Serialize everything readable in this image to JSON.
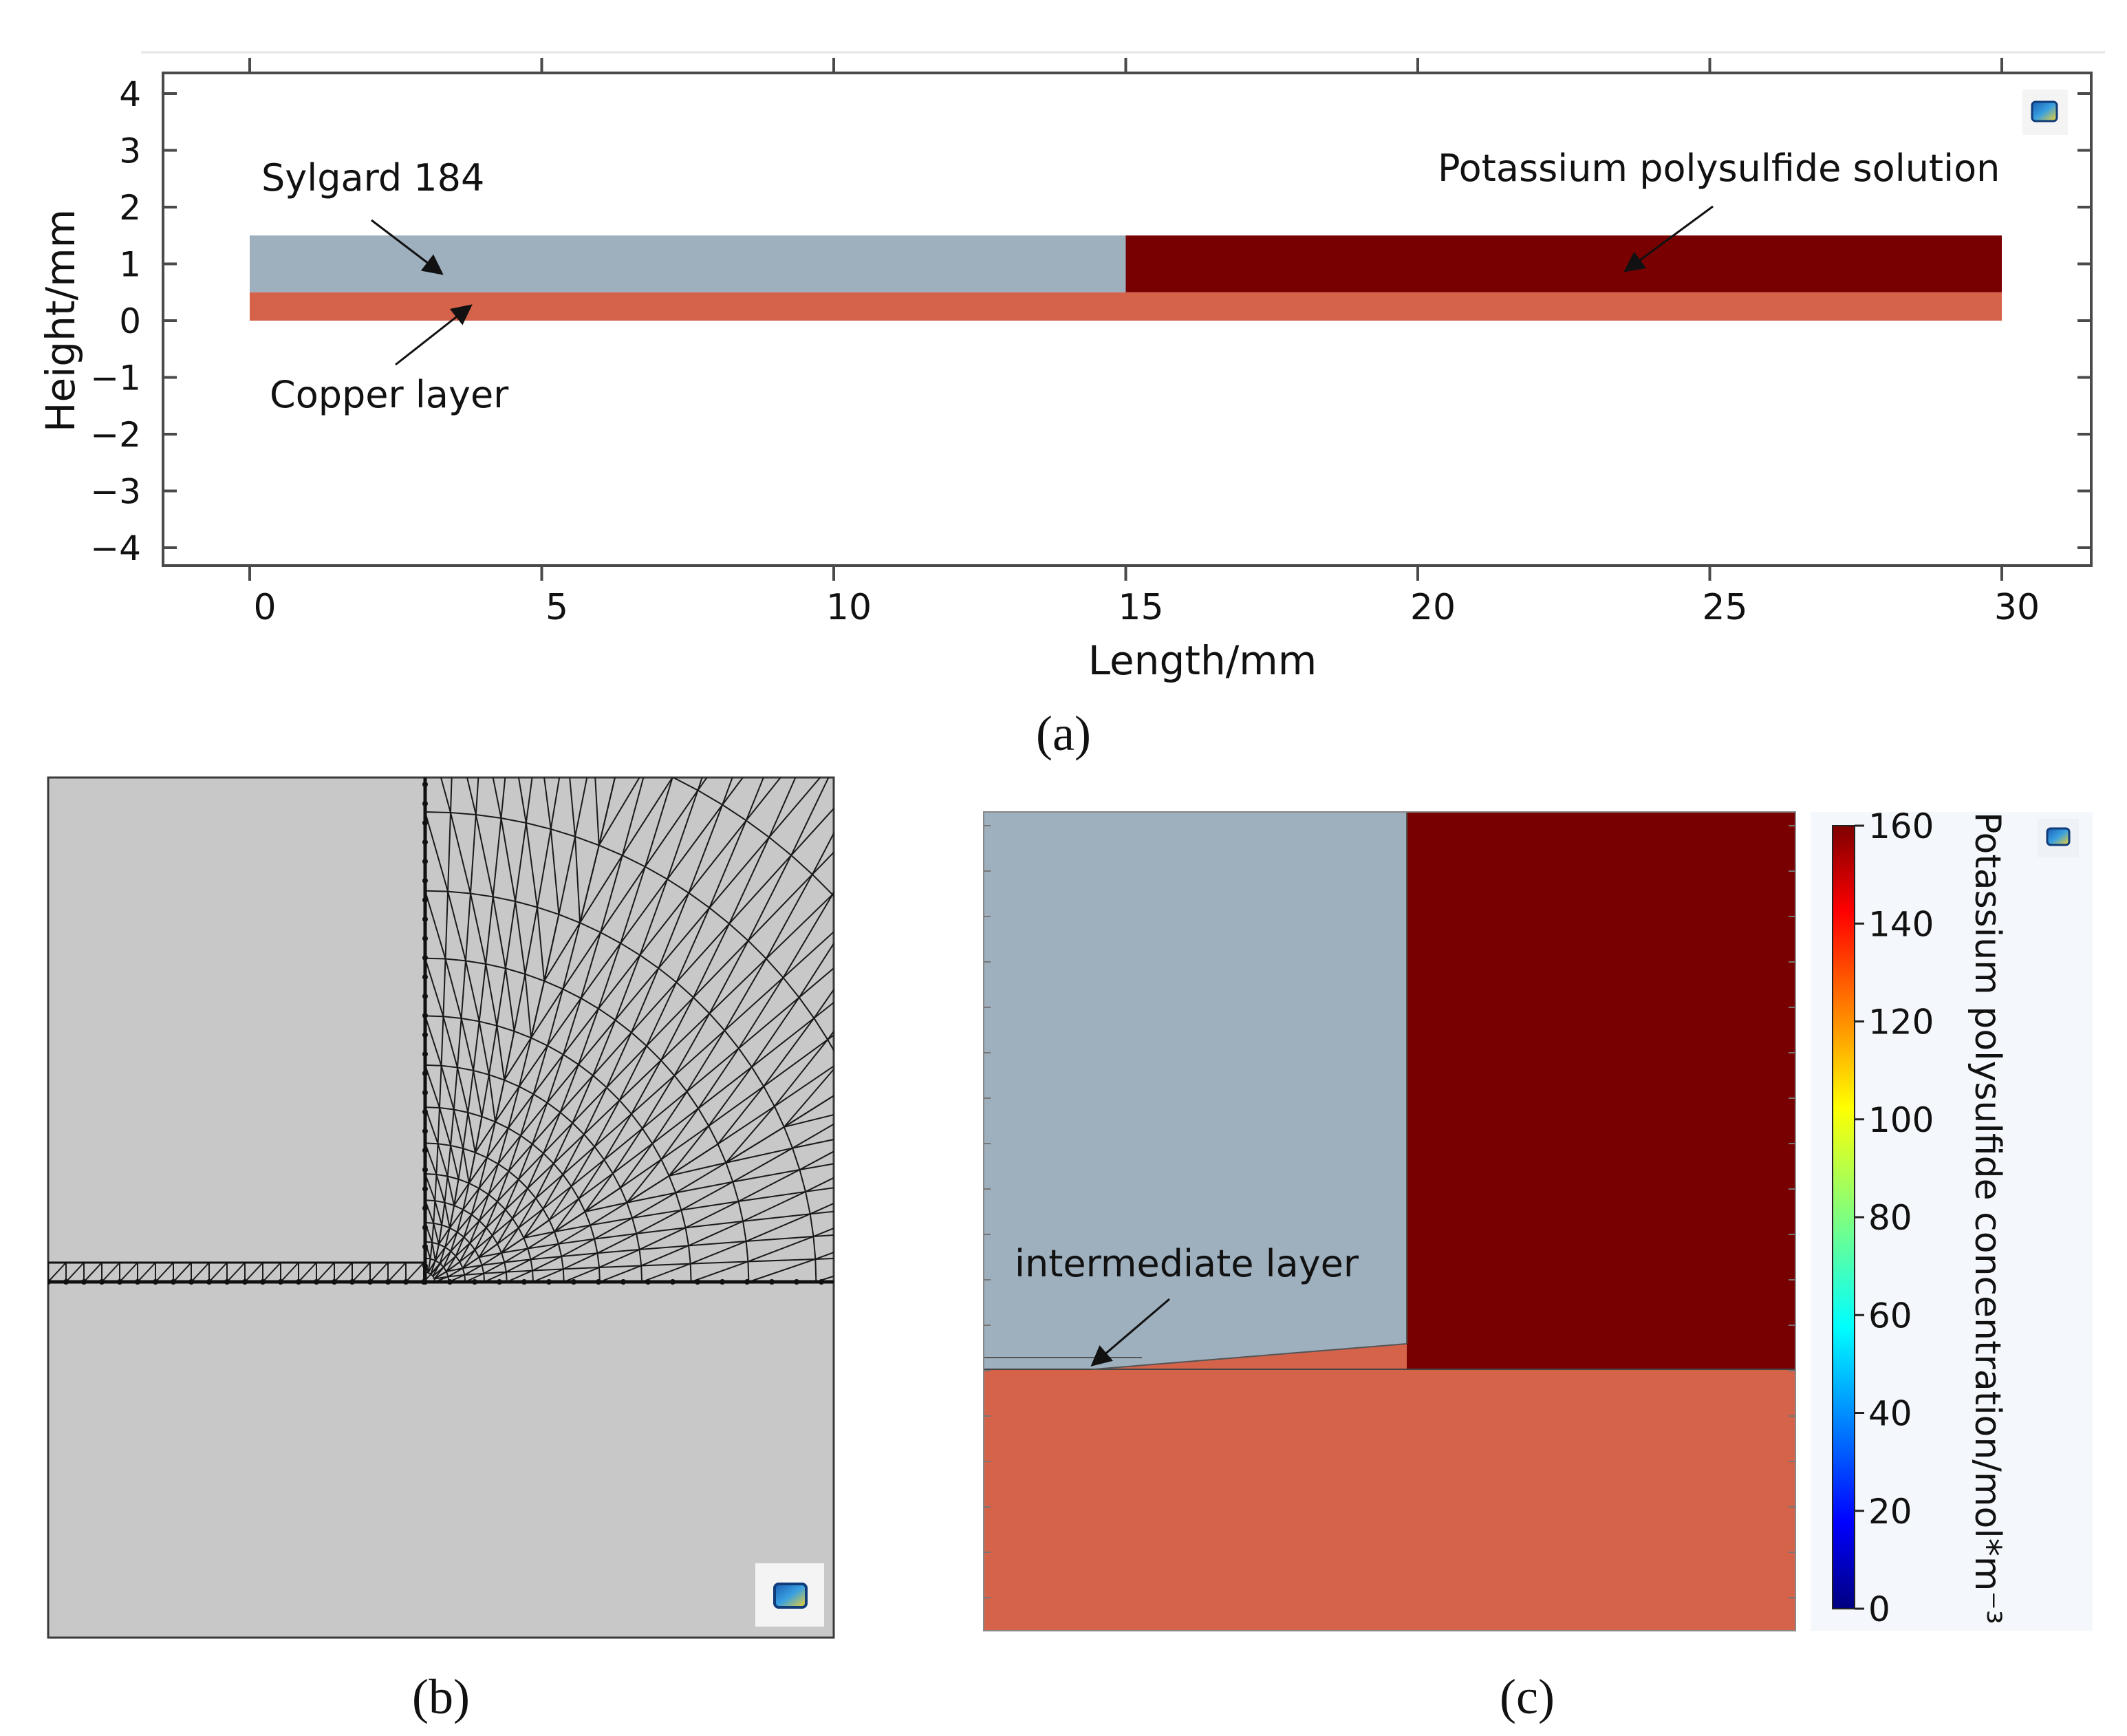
{
  "panel_a": {
    "caption": "(a)",
    "xlabel": "Length/mm",
    "ylabel": "Height/mm",
    "x_ticks": [
      "0",
      "5",
      "10",
      "15",
      "20",
      "25",
      "30"
    ],
    "y_ticks": [
      "4",
      "3",
      "2",
      "1",
      "0",
      "−1",
      "−2",
      "−3",
      "−4"
    ],
    "x_range": [
      0,
      30
    ],
    "y_range": [
      -4,
      4
    ],
    "regions": [
      {
        "name": "Copper layer",
        "x": [
          0,
          30
        ],
        "y": [
          0,
          0.5
        ],
        "color": "#d4634a"
      },
      {
        "name": "Sylgard 184",
        "x": [
          0,
          15
        ],
        "y": [
          0.5,
          1.5
        ],
        "color": "#9eafbe"
      },
      {
        "name": "Potassium polysulfide solution",
        "x": [
          15,
          30
        ],
        "y": [
          0.5,
          1.5
        ],
        "color": "#790000"
      }
    ],
    "labels": {
      "sylgard": "Sylgard 184",
      "potassium": "Potassium polysulfide solution",
      "copper": "Copper layer"
    },
    "logo_icon": "comsol-logo-icon"
  },
  "panel_b": {
    "caption": "(b)",
    "description_icon": "comsol-logo-icon"
  },
  "panel_c": {
    "caption": "(c)",
    "annotation": "intermediate layer",
    "colorbar": {
      "title": "Potassium polysulfide concentration/mol*m⁻³",
      "ticks": [
        "160",
        "140",
        "120",
        "100",
        "80",
        "60",
        "40",
        "20",
        "0"
      ],
      "range": [
        0,
        160
      ],
      "colormap": "jet"
    },
    "colors": {
      "sylgard": "#9eafbe",
      "solution": "#790000",
      "copper": "#d4634a"
    }
  }
}
